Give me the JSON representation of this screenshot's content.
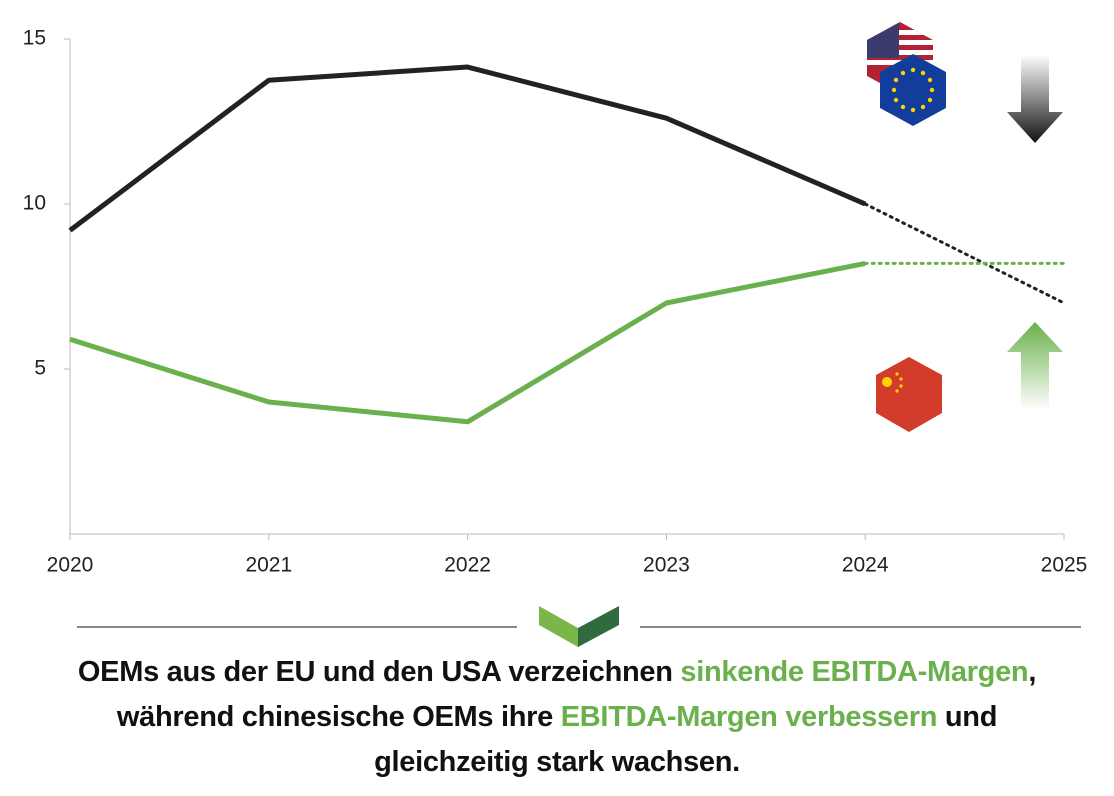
{
  "chart_data": {
    "type": "line",
    "x": [
      2020,
      2021,
      2022,
      2023,
      2024,
      2025
    ],
    "xlim": [
      2020,
      2025
    ],
    "xticks": [
      2020,
      2021,
      2022,
      2023,
      2024,
      2025
    ],
    "ylim": [
      0,
      15
    ],
    "yticks": [
      5,
      10,
      15
    ],
    "dashed_after": 2024,
    "series": [
      {
        "color": "#222222",
        "values": [
          9.2,
          13.75,
          14.15,
          12.6,
          10.0,
          7.0
        ]
      },
      {
        "color": "#6ab04c",
        "values": [
          5.9,
          4.0,
          3.4,
          7.0,
          8.2,
          8.2
        ]
      }
    ]
  },
  "caption": [
    {
      "text": "OEMs aus der EU und den USA verzeichnen ",
      "highlight": false
    },
    {
      "text": "sinkende EBITDA-Margen",
      "highlight": true
    },
    {
      "text": ", während chinesische OEMs ihre ",
      "highlight": false
    },
    {
      "text": "EBITDA-Margen verbessern",
      "highlight": true
    },
    {
      "text": " und gleichzeitig stark wachsen.",
      "highlight": false
    }
  ]
}
